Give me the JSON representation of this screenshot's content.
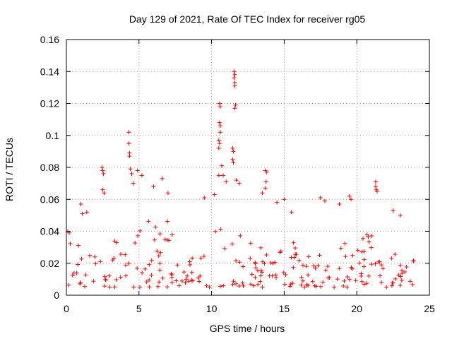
{
  "chart_data": {
    "type": "scatter",
    "title": "Day 129 of 2021, Rate Of TEC Index for receiver rg05",
    "xlabel": "GPS time / hours",
    "ylabel": "ROTI / TECUs",
    "xlim": [
      0,
      25
    ],
    "ylim": [
      0,
      0.16
    ],
    "xticks": [
      0,
      5,
      10,
      15,
      20,
      25
    ],
    "xtick_labels": [
      "0",
      "5",
      "10",
      "15",
      "20",
      "25"
    ],
    "yticks": [
      0,
      0.02,
      0.04,
      0.06,
      0.08,
      0.1,
      0.12,
      0.14,
      0.16
    ],
    "ytick_labels": [
      "0",
      "0.02",
      "0.04",
      "0.06",
      "0.08",
      "0.1",
      "0.12",
      "0.14",
      "0.16"
    ],
    "grid": true,
    "marker": "+",
    "color": "#ff0000",
    "series": [
      {
        "name": "rg05",
        "note": "dense cloud of several thousand points between x=0 and 24 h, mostly 0.005-0.045; representative extreme points listed",
        "points": [
          [
            0.1,
            0.04
          ],
          [
            0.2,
            0.039
          ],
          [
            1.0,
            0.057
          ],
          [
            1.1,
            0.051
          ],
          [
            1.4,
            0.052
          ],
          [
            2.45,
            0.08
          ],
          [
            2.5,
            0.078
          ],
          [
            2.55,
            0.076
          ],
          [
            2.5,
            0.066
          ],
          [
            2.6,
            0.064
          ],
          [
            4.3,
            0.102
          ],
          [
            4.3,
            0.095
          ],
          [
            4.35,
            0.089
          ],
          [
            4.35,
            0.087
          ],
          [
            4.4,
            0.079
          ],
          [
            4.5,
            0.076
          ],
          [
            4.6,
            0.07
          ],
          [
            4.9,
            0.078
          ],
          [
            5.2,
            0.075
          ],
          [
            6.0,
            0.068
          ],
          [
            6.6,
            0.073
          ],
          [
            7.0,
            0.064
          ],
          [
            9.5,
            0.061
          ],
          [
            10.2,
            0.063
          ],
          [
            10.55,
            0.12
          ],
          [
            10.6,
            0.118
          ],
          [
            10.55,
            0.108
          ],
          [
            10.6,
            0.106
          ],
          [
            10.6,
            0.102
          ],
          [
            10.5,
            0.097
          ],
          [
            10.55,
            0.095
          ],
          [
            10.5,
            0.092
          ],
          [
            10.7,
            0.081
          ],
          [
            10.5,
            0.075
          ],
          [
            10.8,
            0.075
          ],
          [
            11.0,
            0.071
          ],
          [
            11.55,
            0.14
          ],
          [
            11.6,
            0.138
          ],
          [
            11.55,
            0.136
          ],
          [
            11.6,
            0.133
          ],
          [
            11.6,
            0.131
          ],
          [
            11.65,
            0.119
          ],
          [
            11.6,
            0.117
          ],
          [
            11.45,
            0.092
          ],
          [
            11.5,
            0.09
          ],
          [
            11.45,
            0.085
          ],
          [
            11.5,
            0.083
          ],
          [
            11.7,
            0.072
          ],
          [
            11.9,
            0.07
          ],
          [
            13.5,
            0.064
          ],
          [
            13.7,
            0.078
          ],
          [
            13.8,
            0.077
          ],
          [
            13.75,
            0.071
          ],
          [
            13.7,
            0.067
          ],
          [
            14.5,
            0.058
          ],
          [
            15.0,
            0.06
          ],
          [
            15.5,
            0.052
          ],
          [
            17.5,
            0.061
          ],
          [
            17.8,
            0.059
          ],
          [
            18.8,
            0.057
          ],
          [
            19.5,
            0.062
          ],
          [
            19.6,
            0.06
          ],
          [
            21.3,
            0.071
          ],
          [
            21.3,
            0.068
          ],
          [
            21.35,
            0.066
          ],
          [
            21.4,
            0.065
          ],
          [
            22.5,
            0.053
          ],
          [
            23.0,
            0.05
          ]
        ]
      }
    ]
  }
}
